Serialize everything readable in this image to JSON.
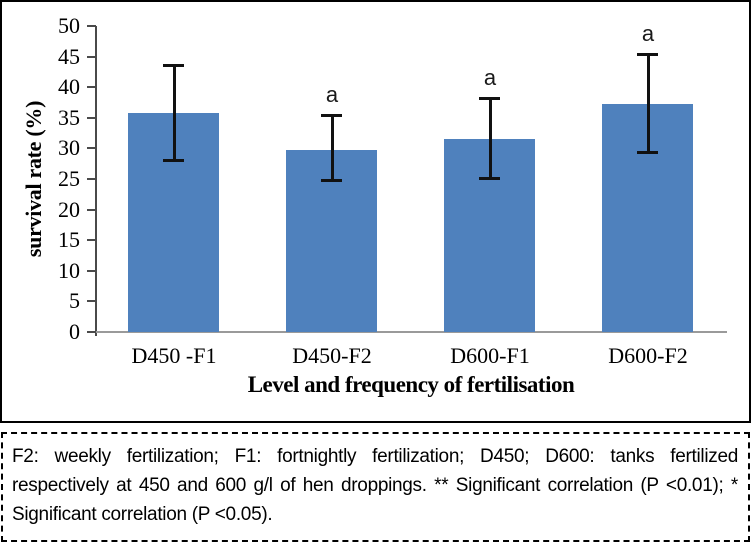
{
  "chart_data": {
    "type": "bar",
    "title": "",
    "categories": [
      "D450 -F1",
      "D450-F2",
      "D600-F1",
      "D600-F2"
    ],
    "values": [
      35.8,
      29.7,
      31.5,
      37.3
    ],
    "error_low": [
      28.0,
      24.7,
      25.0,
      29.2
    ],
    "error_high": [
      43.7,
      35.5,
      38.2,
      45.5
    ],
    "sig_labels": [
      "",
      "a",
      "a",
      "a"
    ],
    "xlabel": "Level and frequency of fertilisation",
    "ylabel": "survival rate (%)",
    "ylim": [
      0,
      50
    ],
    "ytick_step": 5,
    "bar_color": "#4F81BD",
    "error_color": "#111111",
    "grid": false,
    "legend": false
  },
  "caption": {
    "text": "F2: weekly fertilization; F1: fortnightly fertilization; D450; D600: tanks fertilized respectively at 450 and 600 g/l of hen droppings. ** Significant correlation (P <0.01); * Significant correlation (P <0.05)."
  }
}
